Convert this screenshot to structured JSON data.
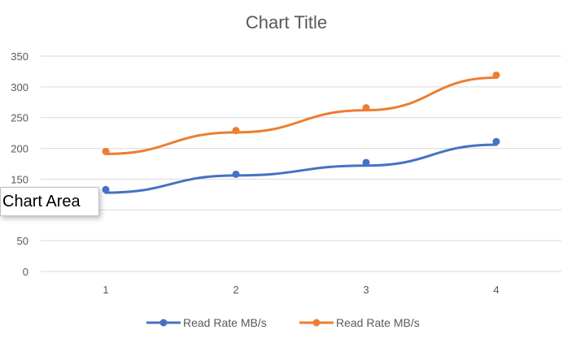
{
  "chart_data": {
    "type": "line",
    "title": "Chart Title",
    "categories": [
      "1",
      "2",
      "3",
      "4"
    ],
    "x": [
      1,
      2,
      3,
      4
    ],
    "ylim": [
      0,
      350
    ],
    "yticks": [
      "0",
      "50",
      "100",
      "150",
      "200",
      "250",
      "300",
      "350"
    ],
    "grid": true,
    "legend_position": "bottom",
    "series": [
      {
        "name": "Read Rate MB/s",
        "color": "#4472C4",
        "values": [
          133,
          158,
          177,
          211
        ],
        "trend": [
          128,
          156,
          172,
          206
        ]
      },
      {
        "name": "Read Rate MB/s",
        "color": "#ED7D31",
        "values": [
          195,
          229,
          266,
          319
        ],
        "trend": [
          191,
          226,
          262,
          315
        ]
      }
    ]
  },
  "tooltip": {
    "text": "Chart Area"
  }
}
